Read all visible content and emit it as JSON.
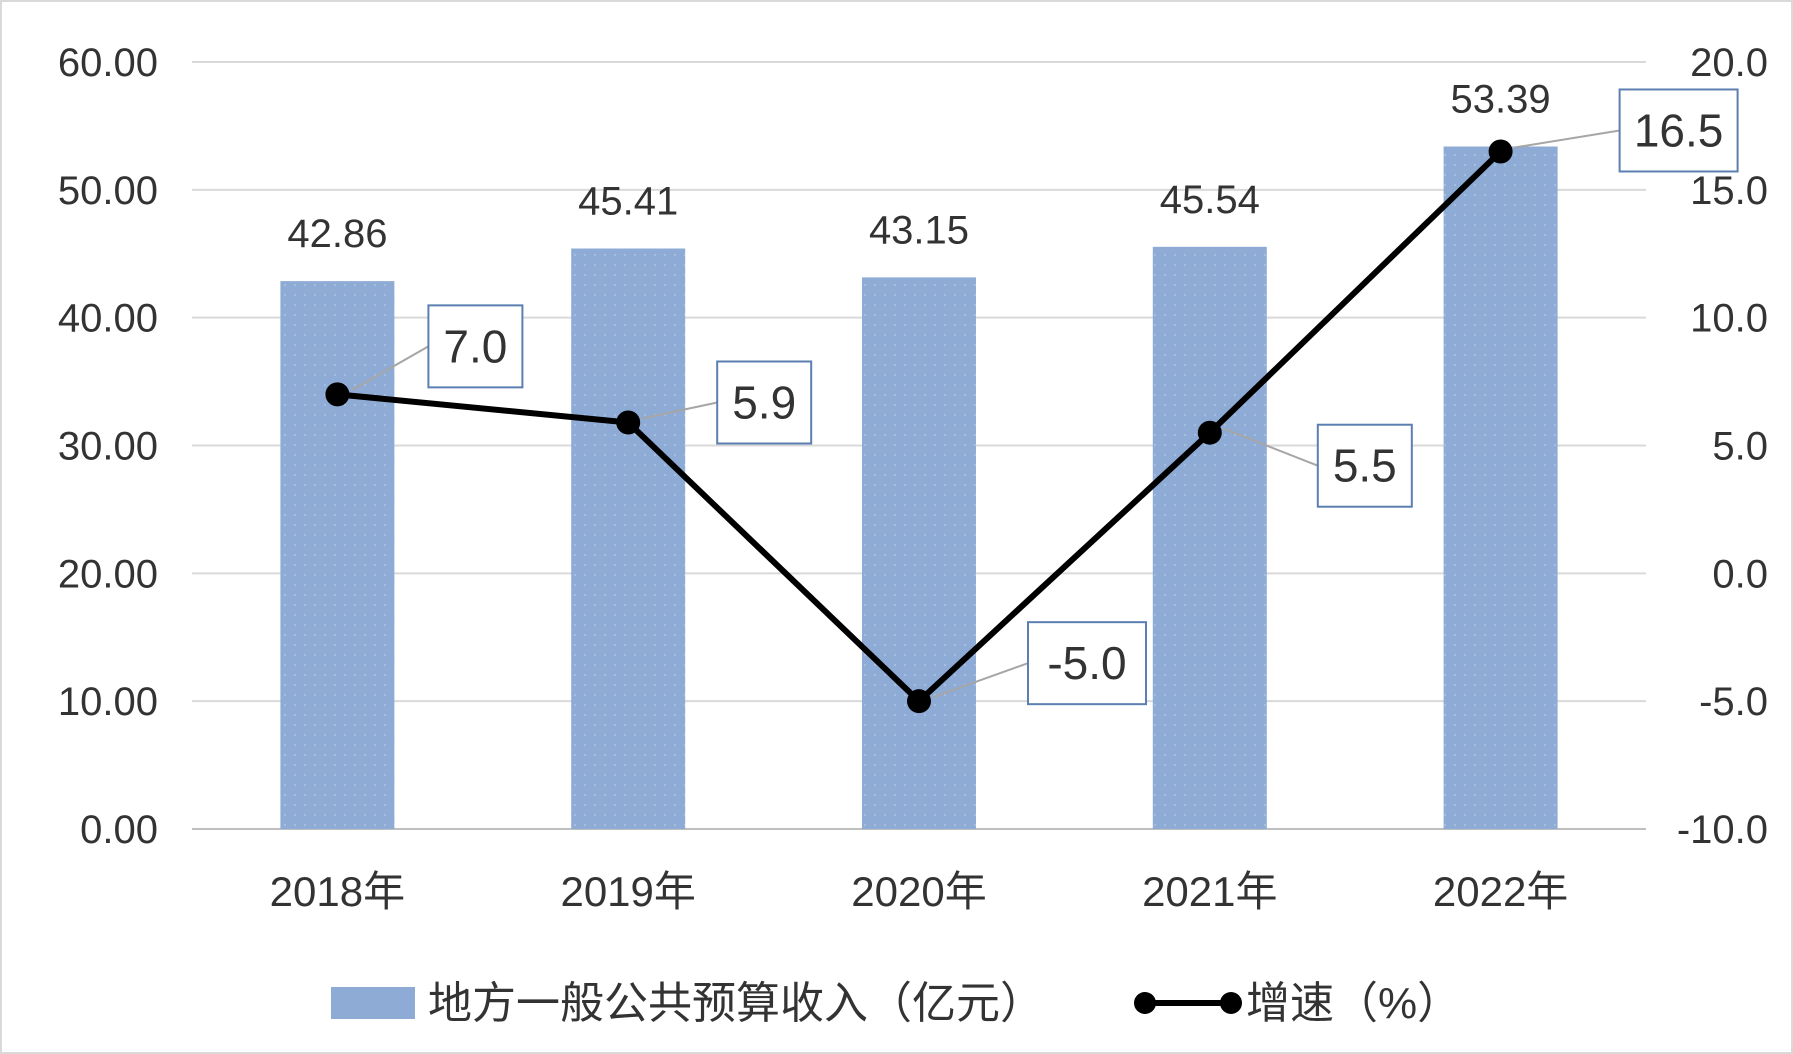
{
  "chart_data": {
    "type": "bar",
    "categories": [
      "2018年",
      "2019年",
      "2020年",
      "2021年",
      "2022年"
    ],
    "series": [
      {
        "name": "地方一般公共预算收入（亿元）",
        "type": "bar",
        "axis": "left",
        "values": [
          42.86,
          45.41,
          43.15,
          45.54,
          53.39
        ],
        "labels": [
          "42.86",
          "45.41",
          "43.15",
          "45.54",
          "53.39"
        ],
        "color": "#8eabd6"
      },
      {
        "name": "增速（%）",
        "type": "line",
        "axis": "right",
        "values": [
          7.0,
          5.9,
          -5.0,
          5.5,
          16.5
        ],
        "labels": [
          "7.0",
          "5.9",
          "-5.0",
          "5.5",
          "16.5"
        ],
        "color": "#000000"
      }
    ],
    "y_left": {
      "ylim": [
        0,
        60
      ],
      "ticks": [
        "0.00",
        "10.00",
        "20.00",
        "30.00",
        "40.00",
        "50.00",
        "60.00"
      ]
    },
    "y_right": {
      "ylim": [
        -10,
        20
      ],
      "ticks": [
        "-10.0",
        "-5.0",
        "0.0",
        "5.0",
        "10.0",
        "15.0",
        "20.0"
      ]
    },
    "grid": true,
    "legend_position": "bottom"
  }
}
